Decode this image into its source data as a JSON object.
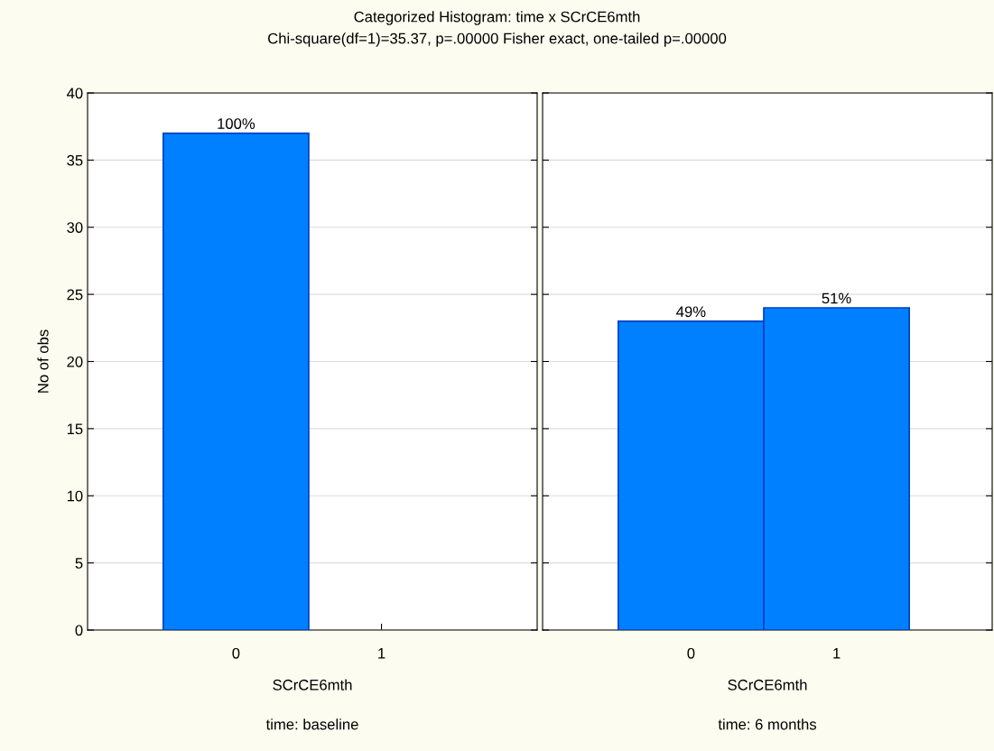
{
  "chart_data": [
    {
      "type": "bar",
      "title": "Categorized Histogram: time x SCrCE6mth",
      "subtitle": "Chi-square(df=1)=35.37, p=.00000 Fisher exact, one-tailed p=.00000",
      "categories": [
        "0",
        "1"
      ],
      "values": [
        37,
        0
      ],
      "color": "#0080ff",
      "xlabel": "SCrCE6mth",
      "ylabel": "No of obs",
      "annotations": [
        {
          "text": "100%",
          "x": "0",
          "y": 37
        },
        "time: baseline"
      ],
      "ylim": [
        0,
        40
      ],
      "yticks": [
        0,
        5,
        10,
        15,
        20,
        25,
        30,
        35,
        40
      ],
      "grid": "y"
    },
    {
      "type": "bar",
      "categories": [
        "0",
        "1"
      ],
      "values": [
        23,
        24
      ],
      "color": "#0080ff",
      "xlabel": "SCrCE6mth",
      "annotations": [
        {
          "text": "49%",
          "x": "0",
          "y": 23
        },
        {
          "text": "51%",
          "x": "1",
          "y": 24
        },
        "time: 6 months"
      ],
      "ylim": [
        0,
        40
      ],
      "yticks": [
        0,
        5,
        10,
        15,
        20,
        25,
        30,
        35,
        40
      ],
      "grid": "y",
      "tick_labels": "x"
    }
  ]
}
